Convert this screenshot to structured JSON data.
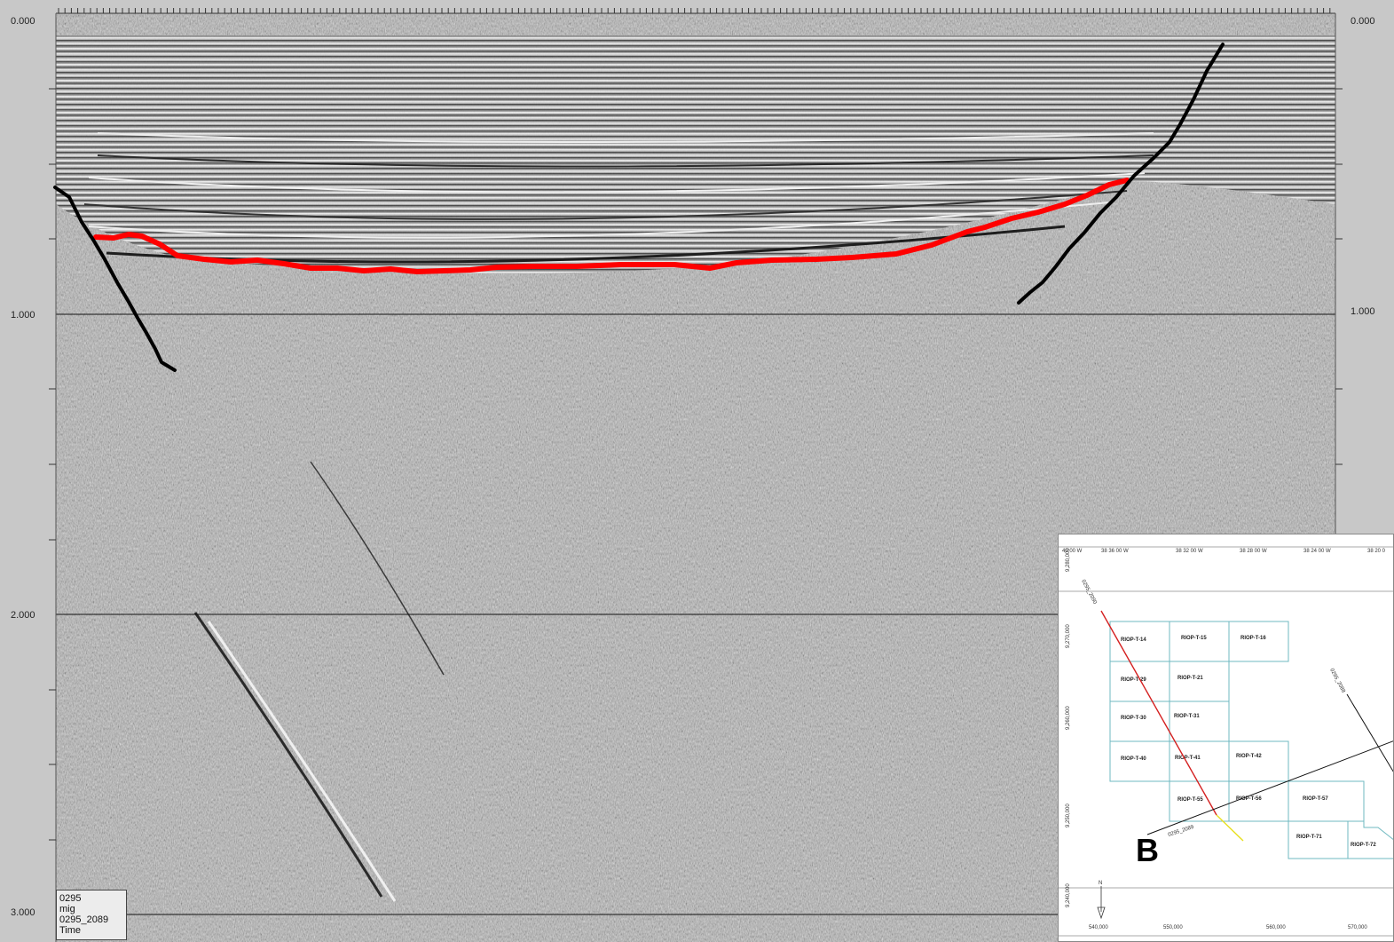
{
  "section": {
    "time_axis_left": [
      "0.000",
      "1.000",
      "2.000",
      "3.000"
    ],
    "time_axis_right": [
      "0.000",
      "1.000"
    ],
    "bottom_partial_label": "3.000",
    "info_box": [
      "0295",
      "mig",
      "0295_2089",
      "Time"
    ],
    "colors": {
      "horizon": "#ff0000",
      "faults": "#000000",
      "background": "#b4b4b4"
    }
  },
  "inset_map": {
    "panel_letter": "B",
    "longitude_labels": [
      "40 00 W",
      "38 36 00 W",
      "38 32 00 W",
      "38 28 00 W",
      "38 24 00 W",
      "38 20 0"
    ],
    "northing_labels": [
      "9,280,000",
      "9,270,000",
      "9,260,000",
      "9,250,000",
      "9,240,000"
    ],
    "easting_labels": [
      "540,000",
      "550,000",
      "560,000",
      "570,000"
    ],
    "north_arrow": "N",
    "line_labels": [
      "0295_2090",
      "0295_2089",
      "0295_2088"
    ],
    "blocks": [
      "RIOP-T-14",
      "RIOP-T-15",
      "RIOP-T-16",
      "RIOP-T-29",
      "RIOP-T-21",
      "RIOP-T-30",
      "RIOP-T-31",
      "RIOP-T-40",
      "RIOP-T-41",
      "RIOP-T-42",
      "RIOP-T-55",
      "RIOP-T-56",
      "RIOP-T-57",
      "RIOP-T-71",
      "RIOP-T-72"
    ],
    "colors": {
      "block_outline": "#6fb9c0",
      "seismic_line": "#d42020",
      "highlight_segment": "#e8e020"
    }
  }
}
